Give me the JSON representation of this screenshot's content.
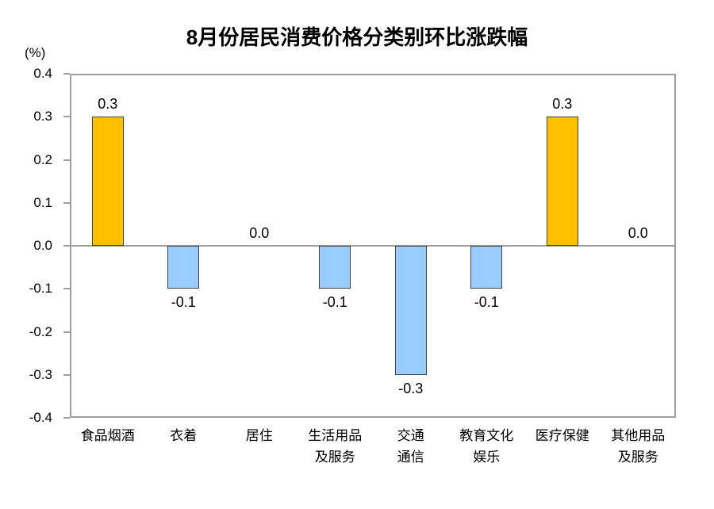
{
  "chart_data": {
    "type": "bar",
    "title": "8月份居民消费价格分类别环比涨跌幅",
    "ylabel": "(%)",
    "xlabel": "",
    "categories": [
      "食品烟酒",
      "衣着",
      "居住",
      "生活用品\n及服务",
      "交通\n通信",
      "教育文化\n娱乐",
      "医疗保健",
      "其他用品\n及服务"
    ],
    "values": [
      0.3,
      -0.1,
      0.0,
      -0.1,
      -0.3,
      -0.1,
      0.3,
      0.0
    ],
    "value_labels": [
      "0.3",
      "-0.1",
      "0.0",
      "-0.1",
      "-0.3",
      "-0.1",
      "0.3",
      "0.0"
    ],
    "ylim": [
      -0.4,
      0.4
    ],
    "ytick_step": 0.1,
    "ytick_labels": [
      "0.4",
      "0.3",
      "0.2",
      "0.1",
      "0.0",
      "-0.1",
      "-0.2",
      "-0.3",
      "-0.4"
    ],
    "grid": false,
    "legend_position": "none",
    "colors": {
      "positive_bar": "#FFC000",
      "negative_bar": "#99CCFF",
      "bar_border": "#404040",
      "axis": "#9e9e9e",
      "text": "#000000",
      "background": "#ffffff"
    }
  }
}
